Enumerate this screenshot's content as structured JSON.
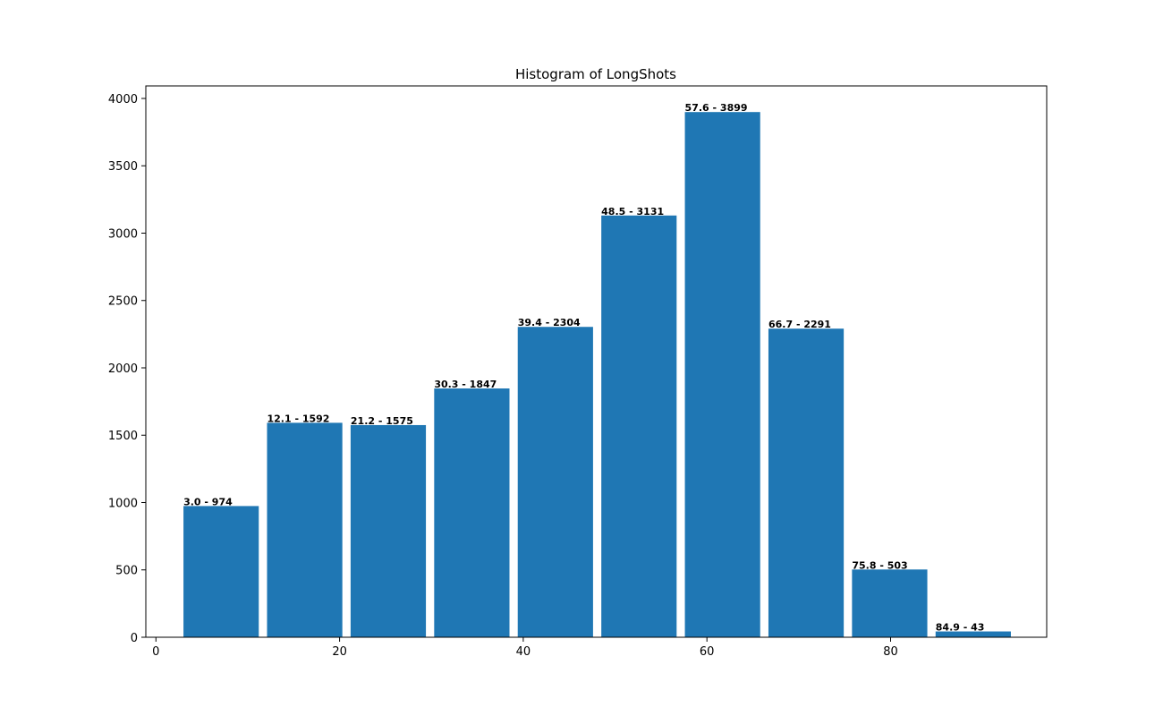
{
  "chart_data": {
    "type": "bar",
    "title": "Histogram of LongShots",
    "xlabel": "",
    "ylabel": "",
    "xlim": [
      -1.1,
      97.0
    ],
    "ylim": [
      0,
      4093
    ],
    "xticks": [
      0,
      20,
      40,
      60,
      80
    ],
    "yticks": [
      0,
      500,
      1000,
      1500,
      2000,
      2500,
      3000,
      3500,
      4000
    ],
    "bin_width": 8.2,
    "color": "#1f77b4",
    "grid": false,
    "bars": [
      {
        "x": 3.0,
        "value": 974,
        "label": "3.0 - 974"
      },
      {
        "x": 12.1,
        "value": 1592,
        "label": "12.1 - 1592"
      },
      {
        "x": 21.2,
        "value": 1575,
        "label": "21.2 - 1575"
      },
      {
        "x": 30.3,
        "value": 1847,
        "label": "30.3 - 1847"
      },
      {
        "x": 39.4,
        "value": 2304,
        "label": "39.4 - 2304"
      },
      {
        "x": 48.5,
        "value": 3131,
        "label": "48.5 - 3131"
      },
      {
        "x": 57.6,
        "value": 3899,
        "label": "57.6 - 3899"
      },
      {
        "x": 66.7,
        "value": 2291,
        "label": "66.7 - 2291"
      },
      {
        "x": 75.8,
        "value": 503,
        "label": "75.8 - 503"
      },
      {
        "x": 84.9,
        "value": 43,
        "label": "84.9 - 43"
      }
    ]
  }
}
